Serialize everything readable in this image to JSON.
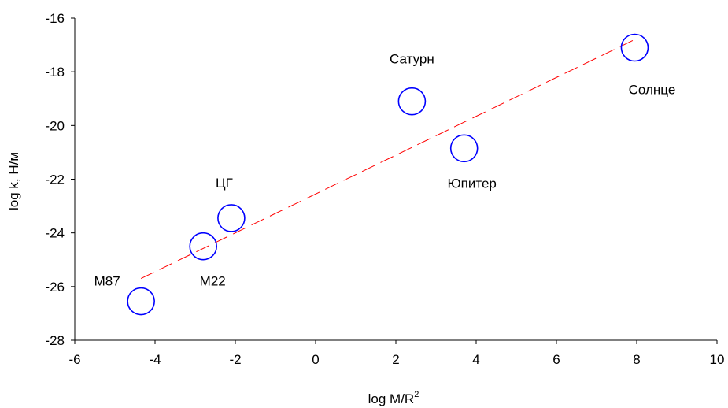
{
  "chart_data": {
    "type": "scatter",
    "ylabel": "log k, Н/м",
    "xlabel": {
      "base": "log M/R",
      "superscript": "2"
    },
    "xlim": [
      -6,
      10
    ],
    "ylim": [
      -28,
      -16
    ],
    "xticks": [
      -6,
      -4,
      -2,
      0,
      2,
      4,
      6,
      8,
      10
    ],
    "yticks": [
      -28,
      -26,
      -24,
      -22,
      -20,
      -18,
      -16
    ],
    "xtick_labels": [
      "-6",
      "-4",
      "-2",
      "0",
      "2",
      "4",
      "6",
      "8",
      "10"
    ],
    "ytick_labels": [
      "-28",
      "-26",
      "-24",
      "-22",
      "-20",
      "-18",
      "-16"
    ],
    "grid": false,
    "marker": {
      "shape": "open-circle",
      "color": "#0000ff"
    },
    "points": [
      {
        "label": "М87",
        "x": -4.35,
        "y": -26.55
      },
      {
        "label": "М22",
        "x": -2.8,
        "y": -24.5
      },
      {
        "label": "ЦГ",
        "x": -2.1,
        "y": -23.45
      },
      {
        "label": "Сатурн",
        "x": 2.4,
        "y": -19.1
      },
      {
        "label": "Юпитер",
        "x": 3.7,
        "y": -20.85
      },
      {
        "label": "Солнце",
        "x": 7.95,
        "y": -17.1
      }
    ],
    "trendline": {
      "style": "dashed",
      "color": "#ff0000",
      "x": [
        -4.35,
        7.95
      ],
      "y": [
        -25.7,
        -16.8
      ]
    }
  }
}
